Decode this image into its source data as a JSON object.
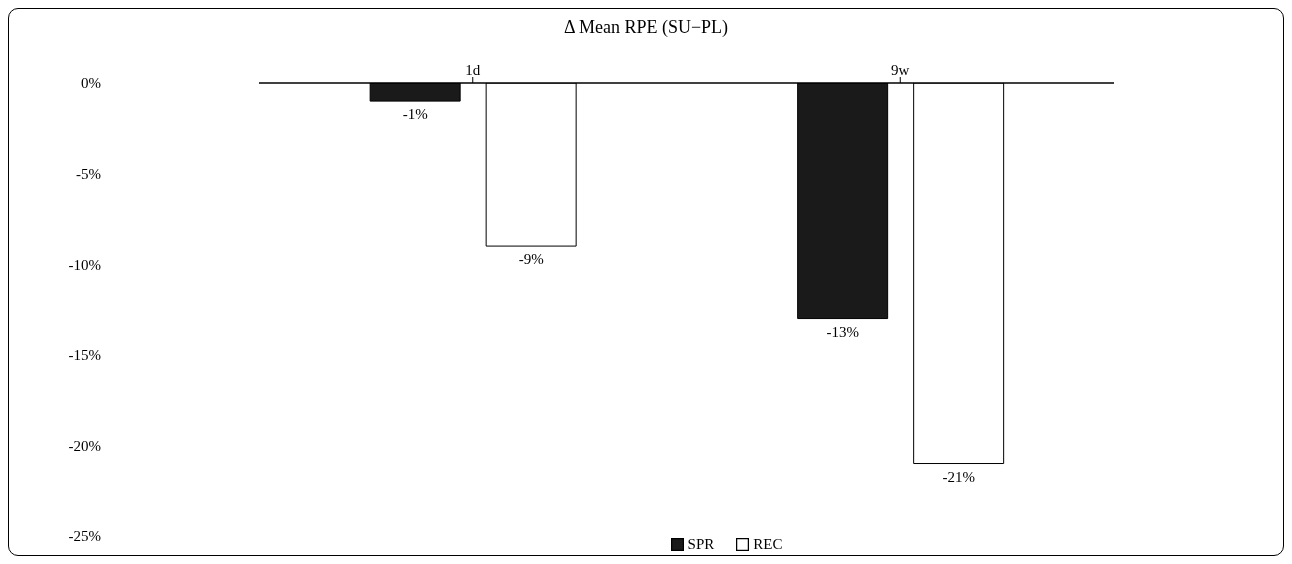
{
  "chart_data": {
    "type": "bar",
    "title": "Δ Mean RPE (SU−PL)",
    "categories": [
      "1d",
      "9w"
    ],
    "series": [
      {
        "name": "SPR",
        "color": "#1a1a1a",
        "values": [
          -1,
          -13
        ],
        "value_labels": [
          "-1%",
          "-13%"
        ]
      },
      {
        "name": "REC",
        "color": "#ffffff",
        "values": [
          -9,
          -21
        ],
        "value_labels": [
          "-9%",
          "-21%"
        ]
      }
    ],
    "ylim": [
      -25,
      0
    ],
    "yticks": [
      {
        "value": 0,
        "label": "0%"
      },
      {
        "value": -5,
        "label": "-5%"
      },
      {
        "value": -10,
        "label": "-10%"
      },
      {
        "value": -15,
        "label": "-15%"
      },
      {
        "value": -20,
        "label": "-20%"
      },
      {
        "value": -25,
        "label": "-25%"
      }
    ],
    "grid": false,
    "legend": "bottom"
  }
}
